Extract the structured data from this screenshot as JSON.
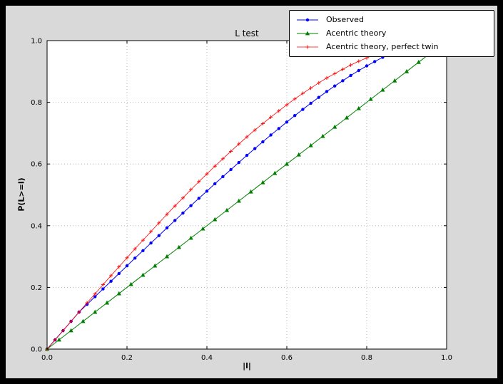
{
  "colors": {
    "window_bg": "#000000",
    "figure_bg": "#d9d9d9",
    "plot_bg": "#ffffff",
    "grid": "#b8b8b8",
    "axis": "#000000"
  },
  "chart_data": {
    "type": "line",
    "title": "L test",
    "xlabel": "|l|",
    "ylabel": "P(L>=l)",
    "xlim": [
      0,
      1
    ],
    "ylim": [
      0,
      1
    ],
    "xticks": [
      0.0,
      0.2,
      0.4,
      0.6,
      0.8,
      1.0
    ],
    "yticks": [
      0.0,
      0.2,
      0.4,
      0.6,
      0.8,
      1.0
    ],
    "grid": true,
    "legend_position": "upper right",
    "series": [
      {
        "name": "Observed",
        "color": "#0000ff",
        "marker": "circle",
        "line_width": 1,
        "x": [
          0.0,
          0.02,
          0.04,
          0.06,
          0.08,
          0.1,
          0.12,
          0.14,
          0.16,
          0.18,
          0.2,
          0.22,
          0.24,
          0.26,
          0.28,
          0.3,
          0.32,
          0.34,
          0.36,
          0.38,
          0.4,
          0.42,
          0.44,
          0.46,
          0.48,
          0.5,
          0.52,
          0.54,
          0.56,
          0.58,
          0.6,
          0.62,
          0.64,
          0.66,
          0.68,
          0.7,
          0.72,
          0.74,
          0.76,
          0.78,
          0.8,
          0.82,
          0.84,
          0.86
        ],
        "y": [
          0.0,
          0.03,
          0.06,
          0.09,
          0.12,
          0.145,
          0.17,
          0.195,
          0.22,
          0.245,
          0.27,
          0.295,
          0.319,
          0.344,
          0.368,
          0.393,
          0.417,
          0.441,
          0.465,
          0.489,
          0.512,
          0.536,
          0.559,
          0.582,
          0.605,
          0.628,
          0.65,
          0.672,
          0.694,
          0.715,
          0.736,
          0.757,
          0.777,
          0.797,
          0.816,
          0.835,
          0.853,
          0.87,
          0.887,
          0.903,
          0.918,
          0.932,
          0.946,
          0.959
        ]
      },
      {
        "name": "Acentric theory",
        "color": "#008000",
        "marker": "triangle",
        "line_width": 1,
        "x": [
          0.0,
          0.03,
          0.06,
          0.09,
          0.12,
          0.15,
          0.18,
          0.21,
          0.24,
          0.27,
          0.3,
          0.33,
          0.36,
          0.39,
          0.42,
          0.45,
          0.48,
          0.51,
          0.54,
          0.57,
          0.6,
          0.63,
          0.66,
          0.69,
          0.72,
          0.75,
          0.78,
          0.81,
          0.84,
          0.87,
          0.9,
          0.93,
          0.96
        ],
        "y": [
          0.0,
          0.03,
          0.06,
          0.09,
          0.12,
          0.15,
          0.18,
          0.21,
          0.24,
          0.27,
          0.3,
          0.33,
          0.36,
          0.39,
          0.42,
          0.45,
          0.48,
          0.51,
          0.54,
          0.57,
          0.6,
          0.63,
          0.66,
          0.69,
          0.72,
          0.75,
          0.78,
          0.81,
          0.84,
          0.87,
          0.9,
          0.93,
          0.96
        ]
      },
      {
        "name": "Acentric theory, perfect twin",
        "color": "#ff0000",
        "marker": "plus",
        "line_width": 0.8,
        "x": [
          0.0,
          0.02,
          0.04,
          0.06,
          0.08,
          0.1,
          0.12,
          0.14,
          0.16,
          0.18,
          0.2,
          0.22,
          0.24,
          0.26,
          0.28,
          0.3,
          0.32,
          0.34,
          0.36,
          0.38,
          0.4,
          0.42,
          0.44,
          0.46,
          0.48,
          0.5,
          0.52,
          0.54,
          0.56,
          0.58,
          0.6,
          0.62,
          0.64,
          0.66,
          0.68,
          0.7,
          0.72,
          0.74,
          0.76,
          0.78,
          0.8,
          0.82,
          0.84,
          0.86,
          0.88,
          0.9
        ],
        "y": [
          0.0,
          0.03,
          0.06,
          0.09,
          0.12,
          0.15,
          0.179,
          0.209,
          0.238,
          0.267,
          0.296,
          0.325,
          0.353,
          0.381,
          0.409,
          0.437,
          0.464,
          0.49,
          0.517,
          0.543,
          0.568,
          0.593,
          0.617,
          0.641,
          0.665,
          0.688,
          0.71,
          0.731,
          0.752,
          0.772,
          0.792,
          0.811,
          0.829,
          0.846,
          0.863,
          0.879,
          0.893,
          0.907,
          0.921,
          0.933,
          0.944,
          0.954,
          0.964,
          0.972,
          0.979,
          0.986
        ]
      }
    ]
  }
}
